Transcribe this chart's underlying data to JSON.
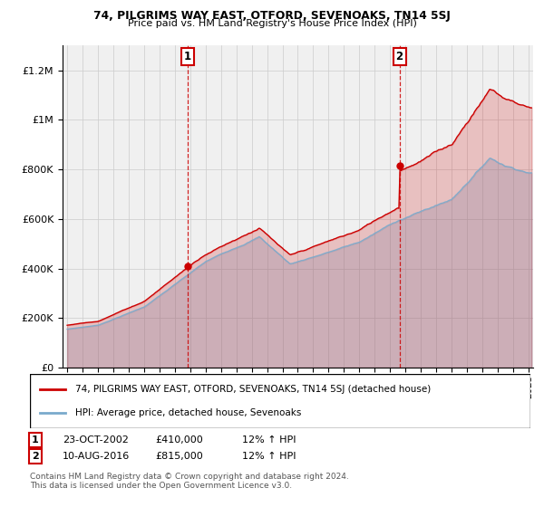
{
  "title1": "74, PILGRIMS WAY EAST, OTFORD, SEVENOAKS, TN14 5SJ",
  "title2": "Price paid vs. HM Land Registry's House Price Index (HPI)",
  "legend_line1": "74, PILGRIMS WAY EAST, OTFORD, SEVENOAKS, TN14 5SJ (detached house)",
  "legend_line2": "HPI: Average price, detached house, Sevenoaks",
  "annotation1_date": "23-OCT-2002",
  "annotation1_price": "£410,000",
  "annotation1_hpi": "12% ↑ HPI",
  "annotation2_date": "10-AUG-2016",
  "annotation2_price": "£815,000",
  "annotation2_hpi": "12% ↑ HPI",
  "footer1": "Contains HM Land Registry data © Crown copyright and database right 2024.",
  "footer2": "This data is licensed under the Open Government Licence v3.0.",
  "purchase1_year": 2002.81,
  "purchase1_value": 410000,
  "purchase2_year": 2016.61,
  "purchase2_value": 815000,
  "property_color": "#cc0000",
  "hpi_color": "#7aaacc",
  "annotation_color": "#cc0000",
  "background_color": "#ffffff",
  "plot_bg_color": "#f0f0f0",
  "grid_color": "#cccccc",
  "ylim_max": 1300000,
  "xlim_start": 1994.7,
  "xlim_end": 2025.3,
  "hpi_base_1995": 155000,
  "prop_base_1995": 175000
}
